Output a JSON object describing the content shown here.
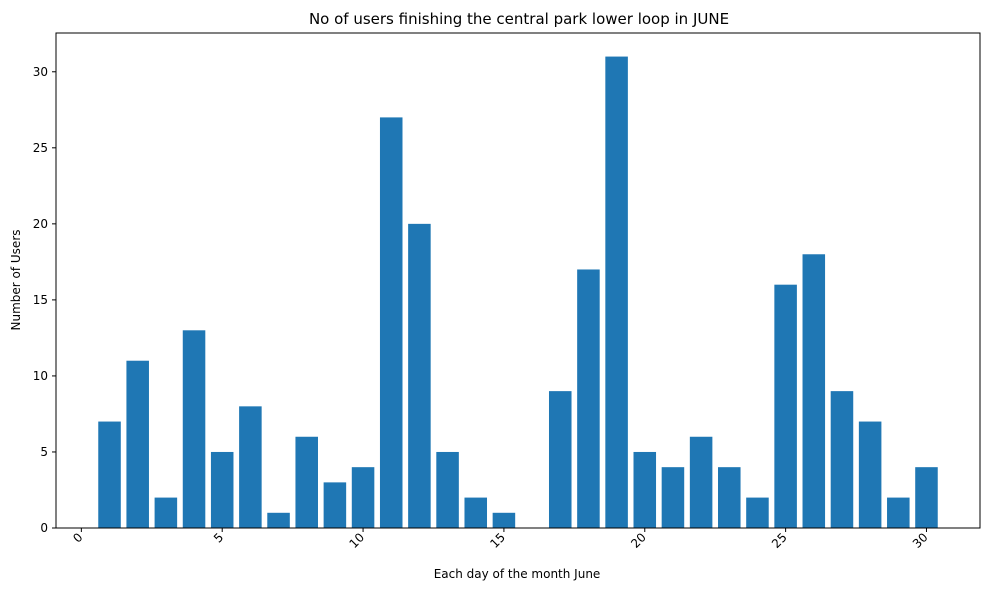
{
  "chart_data": {
    "type": "bar",
    "title": "No of users finishing the central park lower loop in  JUNE",
    "xlabel": "Each day of the month June",
    "ylabel": "Number of Users",
    "x": [
      1,
      2,
      3,
      4,
      5,
      6,
      7,
      8,
      9,
      10,
      11,
      12,
      13,
      14,
      15,
      16,
      17,
      18,
      19,
      20,
      21,
      22,
      23,
      24,
      25,
      26,
      27,
      28,
      29,
      30
    ],
    "values": [
      7,
      11,
      2,
      13,
      5,
      8,
      1,
      6,
      3,
      4,
      27,
      20,
      5,
      2,
      1,
      0,
      9,
      17,
      31,
      5,
      4,
      6,
      4,
      2,
      16,
      18,
      9,
      7,
      2,
      4
    ],
    "xlim": [
      -0.9,
      31.9
    ],
    "ylim": [
      0,
      32.55
    ],
    "xticks": [
      0,
      5,
      10,
      15,
      20,
      25,
      30
    ],
    "yticks": [
      0,
      5,
      10,
      15,
      20,
      25,
      30
    ],
    "xtick_rotation": -45,
    "bar_color": "#1f77b4",
    "grid": false,
    "legend": "none"
  }
}
